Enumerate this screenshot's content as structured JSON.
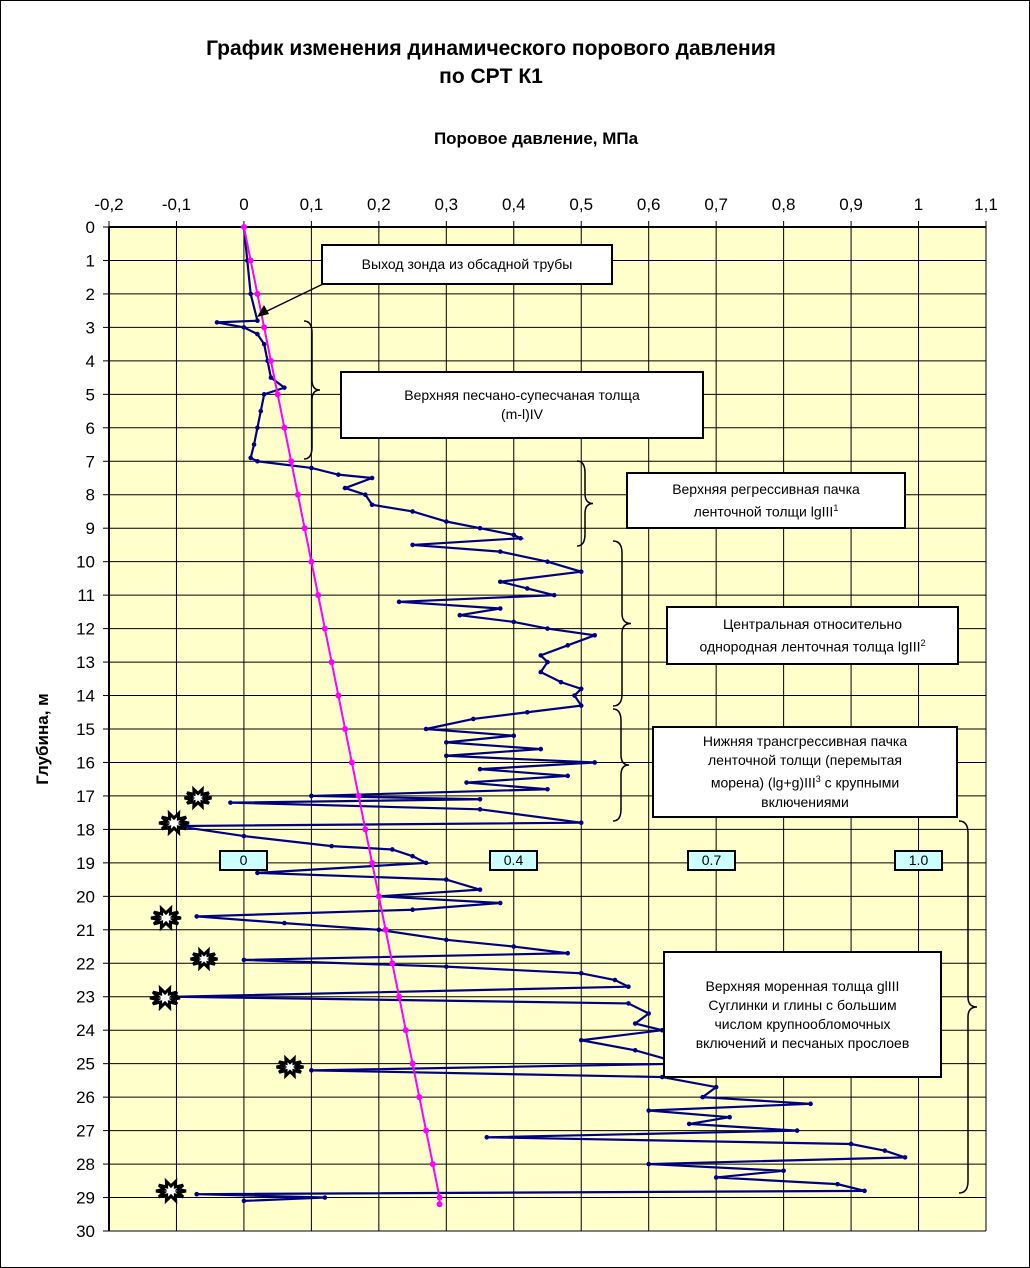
{
  "chart_data": {
    "type": "line",
    "title": [
      "График изменения динамического порового давления",
      "по CPT К1"
    ],
    "xlabel": "Поровое давление, МПа",
    "ylabel": "Глубина, м",
    "xlim": [
      -0.2,
      1.1
    ],
    "ylim": [
      0,
      30
    ],
    "y_inverted": true,
    "x_axis_position": "top",
    "grid": true,
    "plot_background": "#ffffcc",
    "x_ticks": [
      "-0,2",
      "-0,1",
      "0",
      "0,1",
      "0,2",
      "0,3",
      "0,4",
      "0,5",
      "0,6",
      "0,7",
      "0,8",
      "0,9",
      "1",
      "1,1"
    ],
    "y_ticks": [
      "0",
      "1",
      "2",
      "3",
      "4",
      "5",
      "6",
      "7",
      "8",
      "9",
      "10",
      "11",
      "12",
      "13",
      "14",
      "15",
      "16",
      "17",
      "18",
      "19",
      "20",
      "21",
      "22",
      "23",
      "24",
      "25",
      "26",
      "27",
      "28",
      "29",
      "30"
    ],
    "series": [
      {
        "color": "#000080",
        "points": [
          [
            0,
            0
          ],
          [
            0.005,
            1
          ],
          [
            0.01,
            2
          ],
          [
            0.02,
            2.8
          ],
          [
            -0.04,
            2.85
          ],
          [
            0,
            3
          ],
          [
            0.02,
            3.2
          ],
          [
            0.03,
            3.5
          ],
          [
            0.035,
            4
          ],
          [
            0.04,
            4.5
          ],
          [
            0.06,
            4.8
          ],
          [
            0.03,
            5
          ],
          [
            0.025,
            5.5
          ],
          [
            0.02,
            6
          ],
          [
            0.015,
            6.5
          ],
          [
            0.01,
            6.9
          ],
          [
            0.02,
            7
          ],
          [
            0.1,
            7.2
          ],
          [
            0.14,
            7.4
          ],
          [
            0.19,
            7.5
          ],
          [
            0.15,
            7.8
          ],
          [
            0.18,
            8
          ],
          [
            0.19,
            8.3
          ],
          [
            0.25,
            8.5
          ],
          [
            0.3,
            8.8
          ],
          [
            0.35,
            9
          ],
          [
            0.4,
            9.2
          ],
          [
            0.41,
            9.3
          ],
          [
            0.25,
            9.5
          ],
          [
            0.38,
            9.7
          ],
          [
            0.45,
            10
          ],
          [
            0.5,
            10.3
          ],
          [
            0.38,
            10.6
          ],
          [
            0.42,
            10.8
          ],
          [
            0.46,
            11
          ],
          [
            0.23,
            11.2
          ],
          [
            0.38,
            11.4
          ],
          [
            0.32,
            11.6
          ],
          [
            0.4,
            11.8
          ],
          [
            0.45,
            12
          ],
          [
            0.52,
            12.2
          ],
          [
            0.48,
            12.5
          ],
          [
            0.44,
            12.8
          ],
          [
            0.45,
            13
          ],
          [
            0.44,
            13.3
          ],
          [
            0.47,
            13.6
          ],
          [
            0.5,
            13.8
          ],
          [
            0.49,
            14
          ],
          [
            0.5,
            14.3
          ],
          [
            0.42,
            14.5
          ],
          [
            0.34,
            14.7
          ],
          [
            0.27,
            15
          ],
          [
            0.4,
            15.2
          ],
          [
            0.3,
            15.4
          ],
          [
            0.44,
            15.6
          ],
          [
            0.3,
            15.8
          ],
          [
            0.52,
            16
          ],
          [
            0.35,
            16.2
          ],
          [
            0.48,
            16.4
          ],
          [
            0.33,
            16.6
          ],
          [
            0.45,
            16.8
          ],
          [
            0.1,
            17
          ],
          [
            0.35,
            17.1
          ],
          [
            -0.02,
            17.2
          ],
          [
            0.35,
            17.4
          ],
          [
            0.5,
            17.8
          ],
          [
            -0.1,
            17.9
          ],
          [
            0,
            18.2
          ],
          [
            0.13,
            18.5
          ],
          [
            0.22,
            18.6
          ],
          [
            0.25,
            18.8
          ],
          [
            0.27,
            19
          ],
          [
            0.02,
            19.3
          ],
          [
            0.3,
            19.5
          ],
          [
            0.35,
            19.8
          ],
          [
            0.2,
            20
          ],
          [
            0.38,
            20.2
          ],
          [
            0.25,
            20.4
          ],
          [
            -0.07,
            20.6
          ],
          [
            0.06,
            20.8
          ],
          [
            0.2,
            21
          ],
          [
            0.3,
            21.3
          ],
          [
            0.4,
            21.5
          ],
          [
            0.48,
            21.7
          ],
          [
            0,
            21.9
          ],
          [
            0.3,
            22.1
          ],
          [
            0.5,
            22.3
          ],
          [
            0.55,
            22.5
          ],
          [
            0.57,
            22.7
          ],
          [
            -0.1,
            23
          ],
          [
            0.57,
            23.2
          ],
          [
            0.6,
            23.5
          ],
          [
            0.58,
            23.8
          ],
          [
            0.62,
            24
          ],
          [
            0.5,
            24.3
          ],
          [
            0.58,
            24.6
          ],
          [
            0.65,
            25
          ],
          [
            0.1,
            25.2
          ],
          [
            0.62,
            25.4
          ],
          [
            0.7,
            25.7
          ],
          [
            0.68,
            26
          ],
          [
            0.84,
            26.2
          ],
          [
            0.6,
            26.4
          ],
          [
            0.72,
            26.6
          ],
          [
            0.66,
            26.8
          ],
          [
            0.82,
            27
          ],
          [
            0.36,
            27.2
          ],
          [
            0.9,
            27.4
          ],
          [
            0.95,
            27.6
          ],
          [
            0.98,
            27.8
          ],
          [
            0.6,
            28
          ],
          [
            0.8,
            28.2
          ],
          [
            0.7,
            28.4
          ],
          [
            0.88,
            28.6
          ],
          [
            0.92,
            28.8
          ],
          [
            -0.07,
            28.9
          ],
          [
            0.12,
            29
          ],
          [
            0,
            29.1
          ]
        ]
      },
      {
        "color": "#ff00ff",
        "points": [
          [
            0,
            0
          ],
          [
            0.01,
            1
          ],
          [
            0.02,
            2
          ],
          [
            0.03,
            3
          ],
          [
            0.04,
            4
          ],
          [
            0.05,
            5
          ],
          [
            0.06,
            6
          ],
          [
            0.07,
            7
          ],
          [
            0.08,
            8
          ],
          [
            0.09,
            9
          ],
          [
            0.1,
            10
          ],
          [
            0.11,
            11
          ],
          [
            0.12,
            12
          ],
          [
            0.13,
            13
          ],
          [
            0.14,
            14
          ],
          [
            0.15,
            15
          ],
          [
            0.16,
            16
          ],
          [
            0.17,
            17
          ],
          [
            0.18,
            18
          ],
          [
            0.19,
            19
          ],
          [
            0.2,
            20
          ],
          [
            0.21,
            21
          ],
          [
            0.22,
            22
          ],
          [
            0.23,
            23
          ],
          [
            0.24,
            24
          ],
          [
            0.25,
            25
          ],
          [
            0.26,
            26
          ],
          [
            0.27,
            27
          ],
          [
            0.28,
            28
          ],
          [
            0.29,
            29
          ],
          [
            0.29,
            29.2
          ]
        ]
      }
    ],
    "annotations": {
      "probe_exit": "Выход зонда из обсадной трубы",
      "layer1": [
        "Верхняя  песчано-супесчаная толща",
        "(m-l)IV"
      ],
      "layer2": [
        "Верхняя  регрессивная пачка",
        "ленточной толщи lgIII",
        "1"
      ],
      "layer3": [
        "Центральная относительно",
        "однородная  ленточная толща lgIII",
        "2"
      ],
      "layer4": [
        "Нижняя трансгрессивная пачка",
        "ленточной толщи (перемытая",
        "морена) (lg+g)III",
        "3",
        " с крупными",
        "включениями"
      ],
      "layer5": [
        "Верхняя  моренная толща glIII",
        "Суглинки и глины с большим",
        "числом крупнообломочных",
        "включений и песчаных прослоев"
      ],
      "tags": [
        "0",
        "0.4",
        "0.7",
        "1.0"
      ]
    }
  }
}
